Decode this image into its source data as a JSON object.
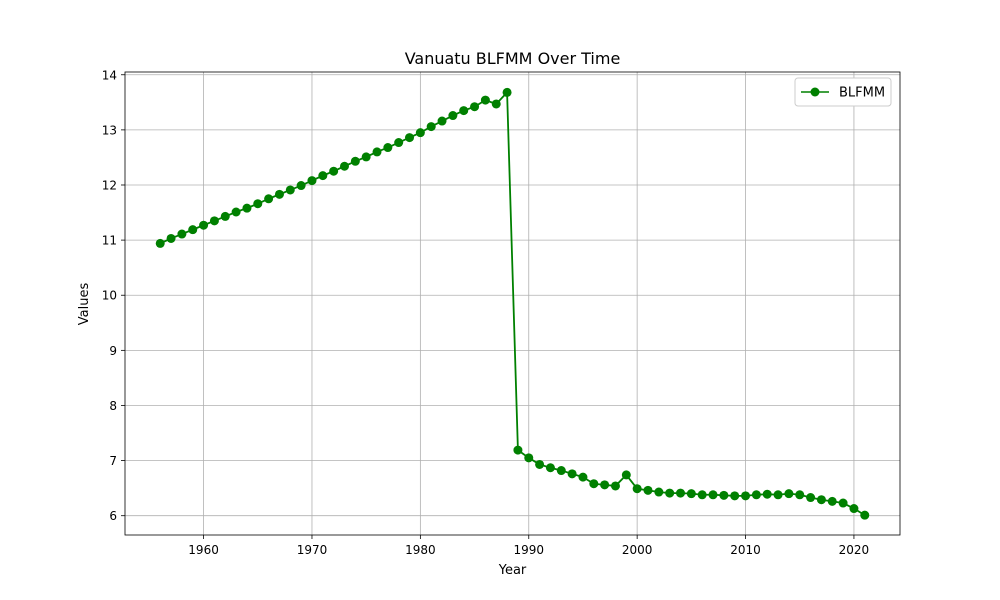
{
  "chart_data": {
    "type": "line",
    "title": "Vanuatu BLFMM Over Time",
    "xlabel": "Year",
    "ylabel": "Values",
    "xlim": [
      1952.75,
      2024.25
    ],
    "ylim": [
      5.65,
      14.05
    ],
    "xticks": [
      1960,
      1970,
      1980,
      1990,
      2000,
      2010,
      2020
    ],
    "yticks": [
      6,
      7,
      8,
      9,
      10,
      11,
      12,
      13,
      14
    ],
    "grid": true,
    "legend_position": "top-right",
    "series": [
      {
        "name": "BLFMM",
        "color": "#008000",
        "marker": "circle",
        "x": [
          1956,
          1957,
          1958,
          1959,
          1960,
          1961,
          1962,
          1963,
          1964,
          1965,
          1966,
          1967,
          1968,
          1969,
          1970,
          1971,
          1972,
          1973,
          1974,
          1975,
          1976,
          1977,
          1978,
          1979,
          1980,
          1981,
          1982,
          1983,
          1984,
          1985,
          1986,
          1987,
          1988,
          1989,
          1990,
          1991,
          1992,
          1993,
          1994,
          1995,
          1996,
          1997,
          1998,
          1999,
          2000,
          2001,
          2002,
          2003,
          2004,
          2005,
          2006,
          2007,
          2008,
          2009,
          2010,
          2011,
          2012,
          2013,
          2014,
          2015,
          2016,
          2017,
          2018,
          2019,
          2020,
          2021
        ],
        "values": [
          10.94,
          11.03,
          11.11,
          11.19,
          11.27,
          11.35,
          11.43,
          11.51,
          11.58,
          11.66,
          11.75,
          11.83,
          11.91,
          11.99,
          12.08,
          12.17,
          12.25,
          12.34,
          12.43,
          12.51,
          12.6,
          12.68,
          12.77,
          12.86,
          12.95,
          13.06,
          13.16,
          13.26,
          13.35,
          13.42,
          13.54,
          13.47,
          13.68,
          7.19,
          7.05,
          6.93,
          6.87,
          6.82,
          6.76,
          6.7,
          6.58,
          6.56,
          6.54,
          6.74,
          6.49,
          6.46,
          6.43,
          6.41,
          6.41,
          6.4,
          6.38,
          6.38,
          6.37,
          6.36,
          6.36,
          6.38,
          6.39,
          6.38,
          6.4,
          6.38,
          6.33,
          6.29,
          6.26,
          6.23,
          6.13,
          6.01
        ]
      }
    ]
  }
}
